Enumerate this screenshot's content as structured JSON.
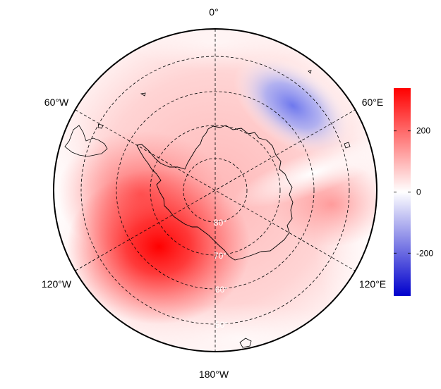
{
  "map": {
    "projection": "south-polar-stereographic",
    "graticule_style": "dashed",
    "longitude_labels": [
      {
        "id": "0",
        "text": "0°"
      },
      {
        "id": "60w",
        "text": "60°W"
      },
      {
        "id": "60e",
        "text": "60°E"
      },
      {
        "id": "120w",
        "text": "120°W"
      },
      {
        "id": "120e",
        "text": "120°E"
      },
      {
        "id": "180",
        "text": "180°W"
      }
    ],
    "latitude_labels": [
      {
        "id": "80",
        "text": "80°"
      },
      {
        "id": "70",
        "text": "70°"
      },
      {
        "id": "60",
        "text": "60°"
      },
      {
        "id": "50",
        "text": "50°"
      }
    ],
    "field_colors": {
      "positive": "#ff0000",
      "neutral": "#ffffff",
      "negative": "#0000ff"
    }
  },
  "colorbar": {
    "range": [
      -340,
      340
    ],
    "ticks": [
      "200",
      "0",
      "-200"
    ],
    "colors": {
      "top": "#ff0000",
      "middle": "#ffffff",
      "bottom": "#0000cc"
    }
  }
}
